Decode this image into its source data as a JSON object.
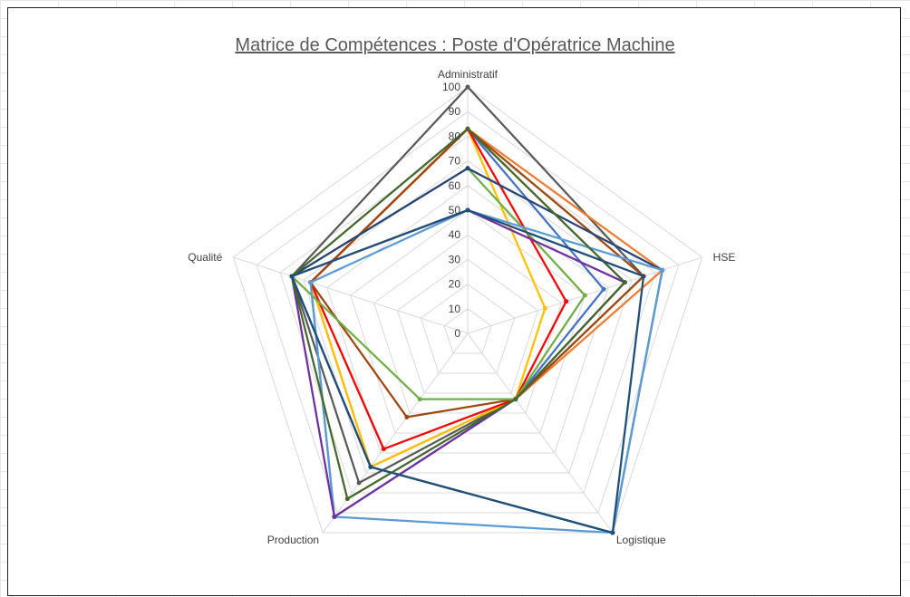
{
  "chart_data": {
    "type": "radar",
    "title": "Matrice de Compétences : Poste d'Opératrice Machine",
    "axes": [
      "Administratif",
      "HSE",
      "Logistique",
      "Production",
      "Qualité"
    ],
    "ticks": [
      "0",
      "10",
      "20",
      "30",
      "40",
      "50",
      "60",
      "70",
      "80",
      "90",
      "100"
    ],
    "range": [
      0,
      100
    ],
    "grid": true,
    "legend": "none",
    "series": [
      {
        "color": "#595959",
        "values": [
          100,
          75,
          33,
          75,
          75
        ]
      },
      {
        "color": "#4472c4",
        "values": [
          83,
          58,
          33,
          92,
          67
        ]
      },
      {
        "color": "#ed7d31",
        "values": [
          83,
          83,
          33,
          67,
          67
        ]
      },
      {
        "color": "#a5a5a5",
        "values": [
          83,
          67,
          33,
          58,
          67
        ]
      },
      {
        "color": "#ffc000",
        "values": [
          83,
          33,
          33,
          67,
          67
        ]
      },
      {
        "color": "#ff0000",
        "values": [
          83,
          42,
          33,
          58,
          67
        ]
      },
      {
        "color": "#9e480e",
        "values": [
          83,
          75,
          33,
          42,
          67
        ]
      },
      {
        "color": "#70ad47",
        "values": [
          67,
          50,
          33,
          33,
          75
        ]
      },
      {
        "color": "#264478",
        "values": [
          67,
          83,
          100,
          67,
          75
        ]
      },
      {
        "color": "#5b9bd5",
        "values": [
          50,
          83,
          100,
          92,
          67
        ]
      },
      {
        "color": "#7030a0",
        "values": [
          50,
          67,
          33,
          92,
          75
        ]
      },
      {
        "color": "#43682b",
        "values": [
          83,
          67,
          33,
          83,
          75
        ]
      },
      {
        "color": "#1f4e79",
        "values": [
          50,
          75,
          100,
          67,
          75
        ]
      }
    ]
  }
}
